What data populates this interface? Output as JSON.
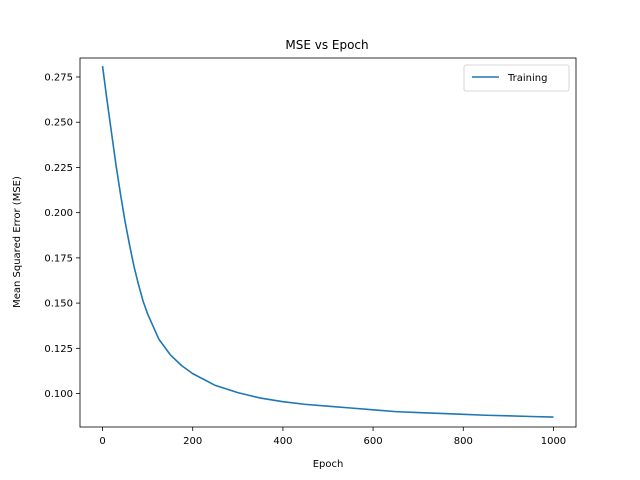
{
  "chart_data": {
    "type": "line",
    "title": "MSE vs Epoch",
    "xlabel": "Epoch",
    "ylabel": "Mean Squared Error (MSE)",
    "xlim": [
      -50,
      1050
    ],
    "ylim": [
      0.0815,
      0.2855
    ],
    "xticks": [
      0,
      200,
      400,
      600,
      800,
      1000
    ],
    "xtick_labels": [
      "0",
      "200",
      "400",
      "600",
      "800",
      "1000"
    ],
    "yticks": [
      0.1,
      0.125,
      0.15,
      0.175,
      0.2,
      0.225,
      0.25,
      0.275
    ],
    "ytick_labels": [
      "0.100",
      "0.125",
      "0.150",
      "0.175",
      "0.200",
      "0.225",
      "0.250",
      "0.275"
    ],
    "grid": false,
    "legend_position": "top-right",
    "series": [
      {
        "name": "Training",
        "color": "#1f77b4",
        "x": [
          0,
          10,
          20,
          30,
          40,
          50,
          60,
          70,
          80,
          90,
          100,
          125,
          150,
          175,
          200,
          250,
          300,
          350,
          400,
          450,
          500,
          550,
          600,
          650,
          700,
          750,
          800,
          850,
          900,
          950,
          1000
        ],
        "y": [
          0.281,
          0.262,
          0.244,
          0.226,
          0.21,
          0.195,
          0.182,
          0.17,
          0.16,
          0.151,
          0.144,
          0.13,
          0.1215,
          0.1155,
          0.111,
          0.1045,
          0.1005,
          0.0975,
          0.0955,
          0.094,
          0.093,
          0.092,
          0.091,
          0.09,
          0.0895,
          0.089,
          0.0885,
          0.088,
          0.0877,
          0.0873,
          0.087
        ]
      }
    ]
  }
}
